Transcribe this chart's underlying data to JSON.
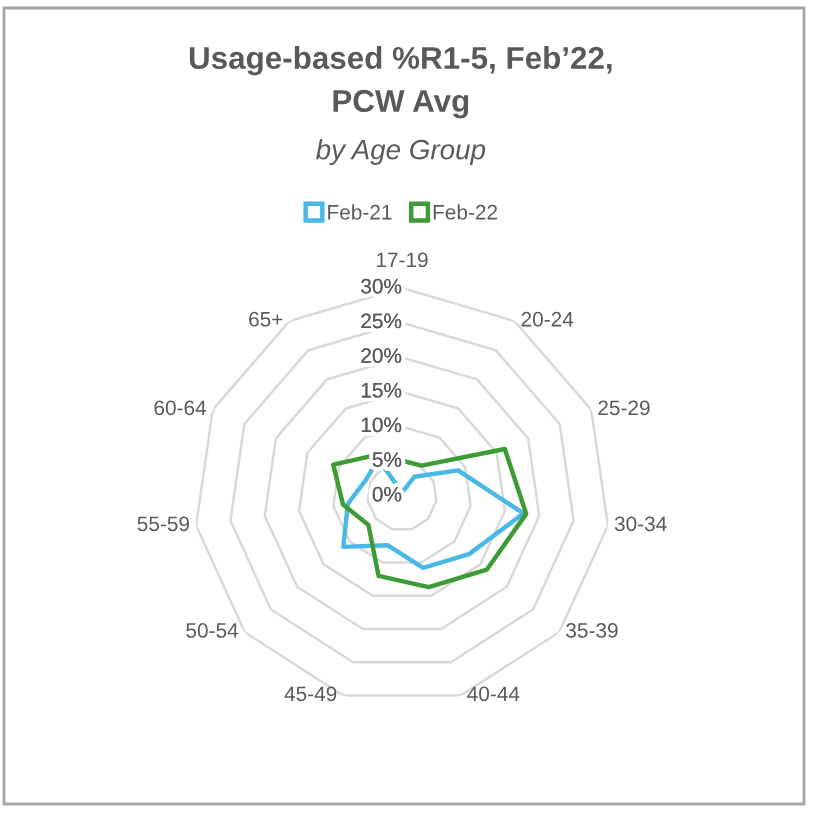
{
  "chart_data": {
    "type": "radar",
    "title": "Usage-based %R1-5, Feb’22,\nPCW Avg",
    "subtitle": "by Age Group",
    "categories": [
      "17-19",
      "20-24",
      "25-29",
      "30-34",
      "35-39",
      "40-44",
      "45-49",
      "50-54",
      "55-59",
      "60-64",
      "65+"
    ],
    "series": [
      {
        "name": "Feb-21",
        "color": "#4ab8e6",
        "values": [
          0.5,
          3.3,
          8.9,
          17.7,
          12.8,
          10.8,
          7.4,
          11.2,
          7.9,
          5.7,
          6.3
        ]
      },
      {
        "name": "Feb-22",
        "color": "#3c9b35",
        "values": [
          5.1,
          5.2,
          16.3,
          18.1,
          16.2,
          13.7,
          12.0,
          6.4,
          8.6,
          10.9,
          7.0
        ]
      }
    ],
    "ylim": [
      0,
      30
    ],
    "yticks": [
      {
        "value": 0,
        "label": "0%"
      },
      {
        "value": 5,
        "label": "5%"
      },
      {
        "value": 10,
        "label": "10%"
      },
      {
        "value": 15,
        "label": "15%"
      },
      {
        "value": 20,
        "label": "20%"
      },
      {
        "value": 25,
        "label": "25%"
      },
      {
        "value": 30,
        "label": "30%"
      }
    ],
    "grid": "y",
    "legend": "top"
  }
}
